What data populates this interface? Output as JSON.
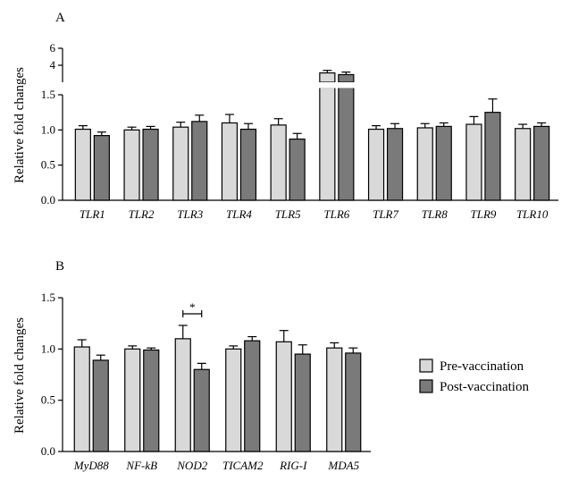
{
  "colors": {
    "pre": "#d9d9d9",
    "post": "#7a7a7a",
    "stroke": "#000000"
  },
  "legend": {
    "items": [
      {
        "label": "Pre-vaccination",
        "color": "#d9d9d9"
      },
      {
        "label": "Post-vaccination",
        "color": "#7a7a7a"
      }
    ],
    "placement": "right"
  },
  "chart_data": [
    {
      "panel": "A",
      "type": "bar",
      "ylabel": "Relative fold changes",
      "y_axis": "broken",
      "ylim_lower": [
        0,
        1.5
      ],
      "ylim_upper": [
        2,
        6
      ],
      "yticks_lower": [
        "0.0",
        "0.5",
        "1.0",
        "1.5"
      ],
      "yticks_upper": [
        "4",
        "6"
      ],
      "categories": [
        "TLR1",
        "TLR2",
        "TLR3",
        "TLR4",
        "TLR5",
        "TLR6",
        "TLR7",
        "TLR8",
        "TLR9",
        "TLR10"
      ],
      "series": [
        {
          "name": "Pre-vaccination",
          "values": [
            1.01,
            1.0,
            1.04,
            1.1,
            1.07,
            3.1,
            1.01,
            1.03,
            1.08,
            1.02
          ],
          "errors": [
            0.05,
            0.04,
            0.07,
            0.12,
            0.09,
            0.3,
            0.05,
            0.06,
            0.11,
            0.06
          ]
        },
        {
          "name": "Post-vaccination",
          "values": [
            0.92,
            1.01,
            1.12,
            1.01,
            0.87,
            2.9,
            1.02,
            1.05,
            1.25,
            1.05
          ],
          "errors": [
            0.05,
            0.04,
            0.09,
            0.08,
            0.08,
            0.3,
            0.07,
            0.05,
            0.19,
            0.05
          ]
        }
      ]
    },
    {
      "panel": "B",
      "type": "bar",
      "ylabel": "Relative fold changes",
      "ylim": [
        0,
        1.5
      ],
      "yticks": [
        "0.0",
        "0.5",
        "1.0",
        "1.5"
      ],
      "categories": [
        "MyD88",
        "NF-kB",
        "NOD2",
        "TICAM2",
        "RIG-I",
        "MDA5"
      ],
      "series": [
        {
          "name": "Pre-vaccination",
          "values": [
            1.02,
            1.0,
            1.1,
            1.0,
            1.07,
            1.01
          ],
          "errors": [
            0.07,
            0.03,
            0.13,
            0.03,
            0.11,
            0.05
          ]
        },
        {
          "name": "Post-vaccination",
          "values": [
            0.89,
            0.99,
            0.8,
            1.08,
            0.95,
            0.96
          ],
          "errors": [
            0.05,
            0.02,
            0.06,
            0.04,
            0.09,
            0.05
          ]
        }
      ],
      "annotations": [
        {
          "text": "*",
          "category": "NOD2"
        }
      ]
    }
  ]
}
